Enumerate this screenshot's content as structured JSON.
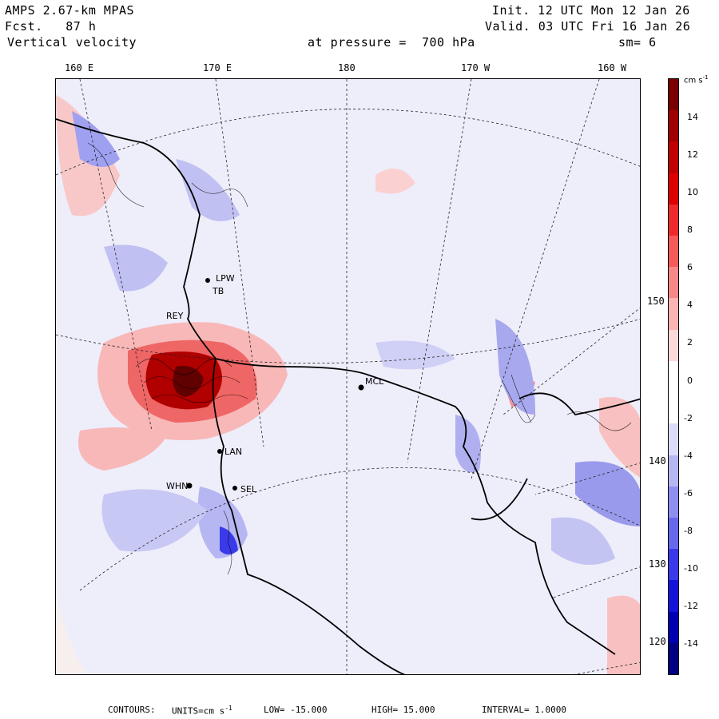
{
  "header": {
    "model": "AMPS 2.67-km MPAS",
    "fcst": "Fcst.   87 h",
    "field": "Vertical velocity",
    "init": "Init. 12 UTC Mon 12 Jan 26",
    "valid": "Valid. 03 UTC Fri 16 Jan 26",
    "pressure": "at pressure =  700 hPa",
    "smoothing": "sm= 6"
  },
  "lon_labels": [
    "160 E",
    "170 E",
    "180",
    "170 W",
    "160 W"
  ],
  "lat_labels": [
    "150 W",
    "140 W",
    "130 W",
    "120 W"
  ],
  "stations": [
    "REY",
    "LPW",
    "TB",
    "MCL",
    "LAN",
    "WHN",
    "SEL"
  ],
  "colorbar": {
    "unit_label": "cm s",
    "unit_exp": "-1",
    "ticks": [
      "14",
      "12",
      "10",
      "8",
      "6",
      "4",
      "2",
      "0",
      "-2",
      "-4",
      "-6",
      "-8",
      "-10",
      "-12",
      "-14"
    ],
    "colors": [
      "#7a0000",
      "#a00000",
      "#c00000",
      "#dd0000",
      "#ee2a2a",
      "#f55a5a",
      "#f88888",
      "#fab4b4",
      "#fdd8d8",
      "#ffffff",
      "#ffffff",
      "#dcdcfa",
      "#b6b6f2",
      "#8e8ef0",
      "#6868ee",
      "#3a3ae8",
      "#1414d8",
      "#0000b0",
      "#000080"
    ]
  },
  "map_colors": {
    "ocean_neutral": "#f7eeee",
    "ice_light": "#ececfb",
    "positive": "#f8c0c0",
    "negative": "#b8b8ee"
  },
  "footer": {
    "contours": "CONTOURS:",
    "units": "UNITS=cm s",
    "units_exp": "-1",
    "low": "LOW= -15.000",
    "high": "HIGH= 15.000",
    "interval": "INTERVAL=  1.0000"
  }
}
